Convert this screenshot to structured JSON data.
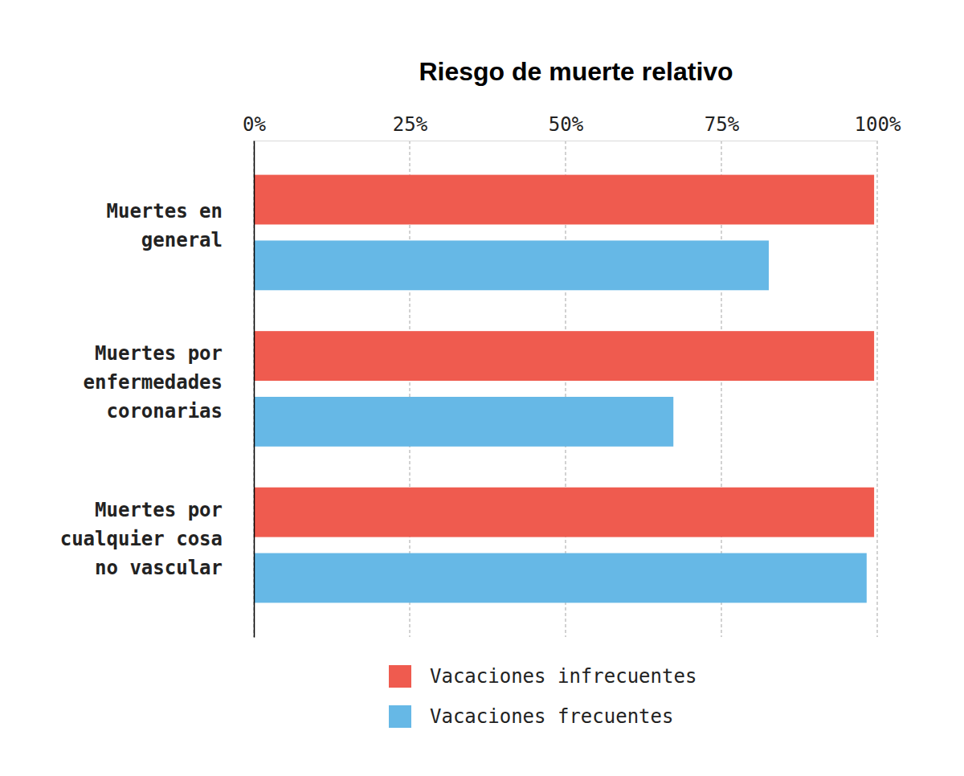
{
  "chart_data": {
    "type": "bar",
    "orientation": "horizontal",
    "title": "Riesgo de muerte relativo",
    "categories": [
      "Muertes en\ngeneral",
      "Muertes por\nenfermedades\ncoronarias",
      "Muertes por\ncualquier cosa\nno vascular"
    ],
    "series": [
      {
        "name": "Vacaciones infrecuentes",
        "color": "#EF5B4F",
        "values": [
          99.5,
          99.5,
          99.5
        ]
      },
      {
        "name": "Vacaciones frecuentes",
        "color": "#66B8E6",
        "values": [
          82.6,
          67.3,
          98.3
        ]
      }
    ],
    "xlim": [
      0,
      100
    ],
    "xticks": [
      {
        "value": 0,
        "label": "0%"
      },
      {
        "value": 25,
        "label": "25%"
      },
      {
        "value": 50,
        "label": "50%"
      },
      {
        "value": 75,
        "label": "75%"
      },
      {
        "value": 100,
        "label": "100%"
      }
    ],
    "grid": true,
    "legend": "bottom"
  }
}
